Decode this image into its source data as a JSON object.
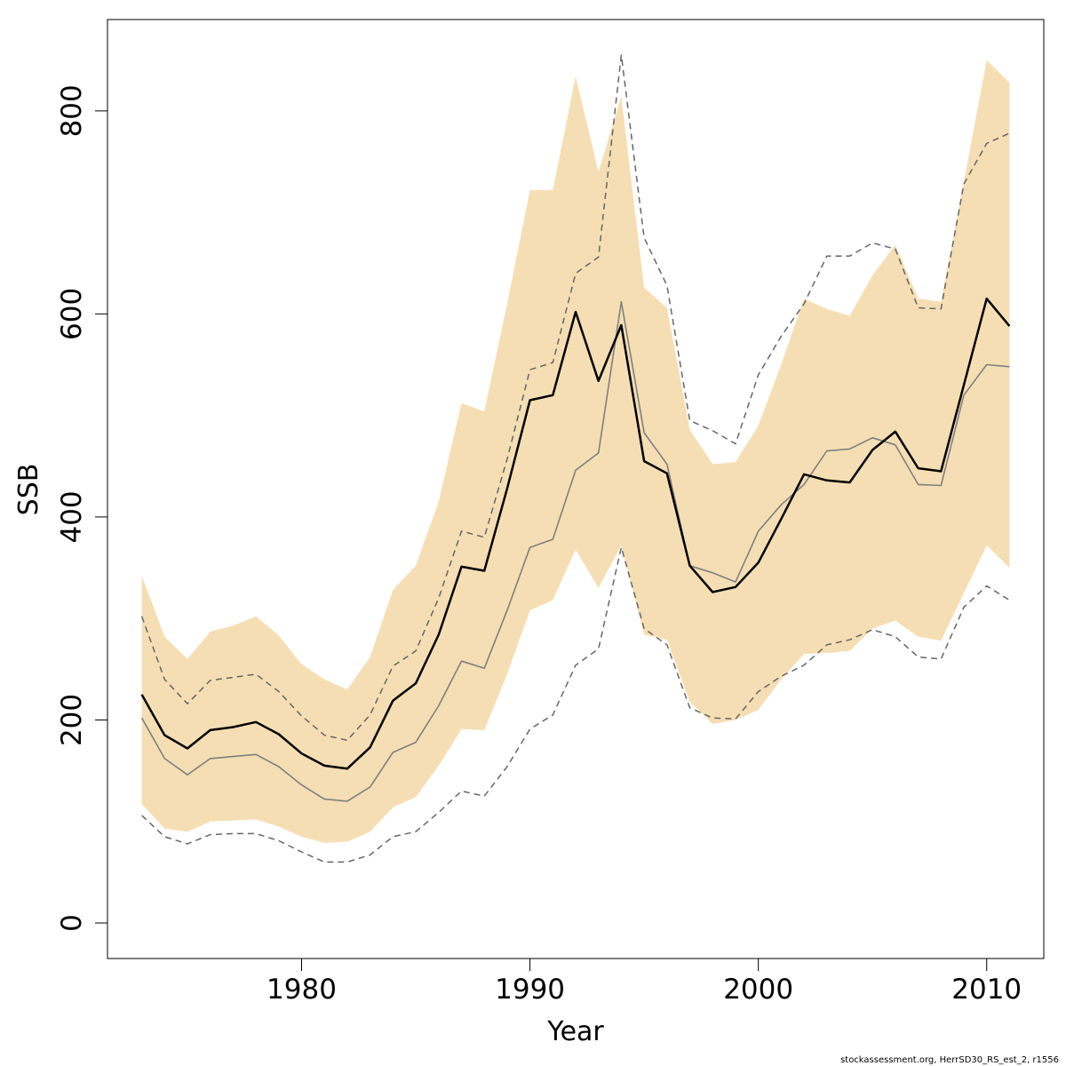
{
  "chart_data": {
    "type": "line",
    "xlabel": "Year",
    "ylabel": "SSB",
    "xlim": [
      1971.5,
      2012.5
    ],
    "ylim": [
      -35,
      890
    ],
    "x_ticks": [
      1980,
      1990,
      2000,
      2010
    ],
    "y_ticks": [
      0,
      200,
      400,
      600,
      800
    ],
    "grid": false,
    "legend": "none",
    "colors": {
      "band": "#F5DEB3",
      "estimate": "#000000",
      "comparison": "#808080",
      "comparison_ci": "#666666"
    },
    "x": [
      1973,
      1974,
      1975,
      1976,
      1977,
      1978,
      1979,
      1980,
      1981,
      1982,
      1983,
      1984,
      1985,
      1986,
      1987,
      1988,
      1989,
      1990,
      1991,
      1992,
      1993,
      1994,
      1995,
      1996,
      1997,
      1998,
      1999,
      2000,
      2001,
      2002,
      2003,
      2004,
      2005,
      2006,
      2007,
      2008,
      2009,
      2010,
      2011
    ],
    "band": {
      "lower": [
        117,
        93,
        90,
        100,
        101,
        102,
        95,
        85,
        79,
        80,
        90,
        114,
        124,
        155,
        191,
        190,
        245,
        308,
        318,
        368,
        330,
        372,
        284,
        279,
        218,
        196,
        200,
        210,
        240,
        265,
        266,
        268,
        290,
        298,
        282,
        278,
        325,
        372,
        350
      ],
      "upper": [
        342,
        282,
        260,
        287,
        293,
        302,
        283,
        255,
        240,
        230,
        262,
        328,
        352,
        415,
        512,
        504,
        610,
        722,
        722,
        834,
        740,
        814,
        626,
        606,
        486,
        452,
        454,
        490,
        550,
        615,
        605,
        598,
        638,
        668,
        615,
        612,
        730,
        850,
        828
      ]
    },
    "series": [
      {
        "values": [
          225,
          185,
          172,
          190,
          193,
          198,
          186,
          167,
          155,
          152,
          173,
          219,
          236,
          284,
          351,
          347,
          428,
          515,
          520,
          602,
          534,
          589,
          455,
          443,
          352,
          326,
          331,
          355,
          398,
          442,
          436,
          434,
          466,
          484,
          448,
          445,
          530,
          615,
          588
        ]
      },
      {
        "values": [
          202,
          162,
          146,
          162,
          164,
          166,
          154,
          136,
          122,
          120,
          134,
          168,
          178,
          214,
          258,
          251,
          308,
          370,
          378,
          446,
          463,
          612,
          483,
          452,
          352,
          345,
          336,
          386,
          412,
          432,
          465,
          467,
          478,
          471,
          432,
          431,
          520,
          550,
          548
        ]
      },
      {
        "values": [
          302,
          240,
          216,
          239,
          242,
          245,
          228,
          204,
          185,
          180,
          205,
          253,
          268,
          320,
          386,
          380,
          457,
          545,
          552,
          640,
          656,
          855,
          675,
          628,
          495,
          485,
          472,
          540,
          578,
          610,
          657,
          657,
          670,
          664,
          606,
          605,
          728,
          768,
          778
        ]
      },
      {
        "values": [
          106,
          85,
          78,
          87,
          88,
          88,
          81,
          70,
          60,
          60,
          67,
          85,
          90,
          109,
          130,
          125,
          154,
          191,
          205,
          254,
          270,
          370,
          290,
          274,
          212,
          202,
          201,
          228,
          243,
          254,
          274,
          279,
          289,
          282,
          262,
          260,
          311,
          332,
          318
        ]
      }
    ]
  },
  "footer": "stockassessment.org, HerrSD30_RS_est_2, r1556"
}
